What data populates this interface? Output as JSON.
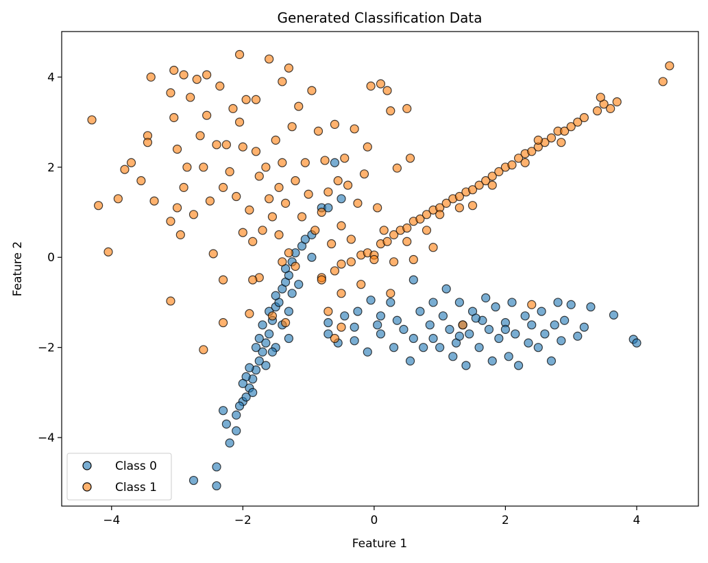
{
  "chart_data": {
    "type": "scatter",
    "title": "Generated Classification Data",
    "xlabel": "Feature 1",
    "ylabel": "Feature 2",
    "xlim": [
      -4.76,
      4.94
    ],
    "ylim": [
      -5.52,
      5.01
    ],
    "xticks": [
      -4,
      -2,
      0,
      2,
      4
    ],
    "yticks": [
      -4,
      -2,
      0,
      2,
      4
    ],
    "grid": false,
    "legend_position": "bottom-left",
    "marker_alpha": 0.6,
    "edge_color": "#000000",
    "series": [
      {
        "name": "Class 0",
        "color": "#1f77b4",
        "points": [
          [
            -2.75,
            -4.95
          ],
          [
            -2.4,
            -5.07
          ],
          [
            -2.4,
            -4.65
          ],
          [
            -2.2,
            -4.12
          ],
          [
            -2.1,
            -3.85
          ],
          [
            -2.25,
            -3.7
          ],
          [
            -2.3,
            -3.4
          ],
          [
            -2.1,
            -3.5
          ],
          [
            -2.0,
            -3.2
          ],
          [
            -2.05,
            -3.3
          ],
          [
            -1.95,
            -3.1
          ],
          [
            -1.9,
            -2.9
          ],
          [
            -1.85,
            -2.7
          ],
          [
            -1.95,
            -2.65
          ],
          [
            -1.8,
            -2.5
          ],
          [
            -1.9,
            -2.45
          ],
          [
            -1.75,
            -2.3
          ],
          [
            -1.7,
            -2.1
          ],
          [
            -1.8,
            -2.0
          ],
          [
            -1.65,
            -1.9
          ],
          [
            -1.75,
            -1.8
          ],
          [
            -1.6,
            -1.7
          ],
          [
            -1.7,
            -1.5
          ],
          [
            -1.55,
            -1.4
          ],
          [
            -1.6,
            -1.2
          ],
          [
            -1.5,
            -1.1
          ],
          [
            -1.45,
            -1.0
          ],
          [
            -1.5,
            -0.85
          ],
          [
            -1.4,
            -0.7
          ],
          [
            -1.35,
            -0.55
          ],
          [
            -1.3,
            -0.4
          ],
          [
            -1.35,
            -0.25
          ],
          [
            -1.25,
            -0.1
          ],
          [
            -1.2,
            0.1
          ],
          [
            -1.1,
            0.25
          ],
          [
            -1.05,
            0.4
          ],
          [
            -0.95,
            0.5
          ],
          [
            -1.3,
            -1.2
          ],
          [
            -1.4,
            -1.5
          ],
          [
            -1.5,
            -2.0
          ],
          [
            -1.65,
            -2.4
          ],
          [
            -1.85,
            -3.0
          ],
          [
            -2.0,
            -2.8
          ],
          [
            -1.55,
            -2.1
          ],
          [
            -1.3,
            -1.8
          ],
          [
            -1.25,
            -0.8
          ],
          [
            -1.15,
            -0.6
          ],
          [
            -0.95,
            0.0
          ],
          [
            -0.8,
            1.1
          ],
          [
            -0.6,
            2.1
          ],
          [
            -0.5,
            1.3
          ],
          [
            -0.7,
            1.1
          ],
          [
            -0.7,
            -1.45
          ],
          [
            -0.7,
            -1.7
          ],
          [
            -0.55,
            -1.9
          ],
          [
            -0.45,
            -1.3
          ],
          [
            -0.3,
            -1.55
          ],
          [
            -0.3,
            -1.85
          ],
          [
            -0.25,
            -1.2
          ],
          [
            -0.1,
            -2.1
          ],
          [
            -0.05,
            -0.95
          ],
          [
            0.05,
            -1.5
          ],
          [
            0.1,
            -1.3
          ],
          [
            0.1,
            -1.7
          ],
          [
            0.25,
            -1.0
          ],
          [
            0.3,
            -2.0
          ],
          [
            0.35,
            -1.4
          ],
          [
            0.45,
            -1.6
          ],
          [
            0.55,
            -2.3
          ],
          [
            0.6,
            -0.5
          ],
          [
            0.6,
            -1.8
          ],
          [
            0.7,
            -1.2
          ],
          [
            0.75,
            -2.0
          ],
          [
            0.85,
            -1.5
          ],
          [
            0.9,
            -1.8
          ],
          [
            1.0,
            -2.0
          ],
          [
            1.05,
            -1.3
          ],
          [
            1.1,
            -0.7
          ],
          [
            1.15,
            -1.6
          ],
          [
            1.2,
            -2.2
          ],
          [
            1.25,
            -1.9
          ],
          [
            1.3,
            -1.0
          ],
          [
            1.35,
            -1.5
          ],
          [
            1.4,
            -2.4
          ],
          [
            1.45,
            -1.7
          ],
          [
            1.5,
            -1.2
          ],
          [
            1.6,
            -2.0
          ],
          [
            1.65,
            -1.4
          ],
          [
            1.7,
            -0.9
          ],
          [
            1.75,
            -1.6
          ],
          [
            1.8,
            -2.3
          ],
          [
            1.85,
            -1.1
          ],
          [
            1.9,
            -1.8
          ],
          [
            2.0,
            -1.45
          ],
          [
            2.05,
            -2.2
          ],
          [
            2.1,
            -1.0
          ],
          [
            2.15,
            -1.7
          ],
          [
            2.2,
            -2.4
          ],
          [
            2.3,
            -1.3
          ],
          [
            2.35,
            -1.9
          ],
          [
            2.4,
            -1.5
          ],
          [
            2.5,
            -2.0
          ],
          [
            2.55,
            -1.2
          ],
          [
            2.6,
            -1.7
          ],
          [
            2.7,
            -2.3
          ],
          [
            2.75,
            -1.5
          ],
          [
            2.8,
            -1.0
          ],
          [
            2.85,
            -1.85
          ],
          [
            2.9,
            -1.4
          ],
          [
            3.0,
            -1.05
          ],
          [
            3.1,
            -1.75
          ],
          [
            3.2,
            -1.55
          ],
          [
            3.3,
            -1.1
          ],
          [
            3.65,
            -1.28
          ],
          [
            3.95,
            -1.82
          ],
          [
            4.0,
            -1.9
          ],
          [
            0.9,
            -1.0
          ],
          [
            1.55,
            -1.35
          ],
          [
            2.0,
            -1.6
          ],
          [
            1.3,
            -1.75
          ]
        ]
      },
      {
        "name": "Class 1",
        "color": "#ff7f0e",
        "points": [
          [
            -0.8,
            -0.45
          ],
          [
            -0.6,
            -0.3
          ],
          [
            -0.5,
            -0.15
          ],
          [
            -0.35,
            -0.1
          ],
          [
            -0.2,
            0.05
          ],
          [
            -0.1,
            0.1
          ],
          [
            0,
            0.05
          ],
          [
            0.1,
            0.3
          ],
          [
            0.2,
            0.35
          ],
          [
            0.3,
            0.5
          ],
          [
            0.4,
            0.6
          ],
          [
            0.5,
            0.65
          ],
          [
            0.6,
            0.8
          ],
          [
            0.7,
            0.85
          ],
          [
            0.8,
            0.95
          ],
          [
            0.9,
            1.05
          ],
          [
            1.0,
            1.1
          ],
          [
            1.1,
            1.2
          ],
          [
            1.2,
            1.3
          ],
          [
            1.3,
            1.35
          ],
          [
            1.4,
            1.45
          ],
          [
            1.5,
            1.5
          ],
          [
            1.6,
            1.6
          ],
          [
            1.7,
            1.7
          ],
          [
            1.8,
            1.8
          ],
          [
            1.9,
            1.9
          ],
          [
            2.0,
            2.0
          ],
          [
            2.1,
            2.05
          ],
          [
            2.2,
            2.2
          ],
          [
            2.3,
            2.3
          ],
          [
            2.4,
            2.35
          ],
          [
            2.5,
            2.45
          ],
          [
            2.6,
            2.55
          ],
          [
            2.7,
            2.65
          ],
          [
            2.8,
            2.8
          ],
          [
            2.9,
            2.8
          ],
          [
            3.0,
            2.9
          ],
          [
            3.1,
            3.0
          ],
          [
            3.2,
            3.1
          ],
          [
            3.4,
            3.25
          ],
          [
            3.5,
            3.4
          ],
          [
            3.6,
            3.3
          ],
          [
            3.7,
            3.45
          ],
          [
            4.4,
            3.9
          ],
          [
            4.5,
            4.25
          ],
          [
            3.45,
            3.55
          ],
          [
            2.85,
            2.55
          ],
          [
            2.3,
            2.1
          ],
          [
            1.8,
            1.6
          ],
          [
            1.3,
            1.1
          ],
          [
            0.8,
            0.6
          ],
          [
            0.5,
            0.35
          ],
          [
            0.0,
            -0.05
          ],
          [
            0.9,
            0.22
          ],
          [
            0.3,
            -0.1
          ],
          [
            -0.7,
            -1.2
          ],
          [
            -0.2,
            -0.6
          ],
          [
            1.5,
            1.15
          ],
          [
            1.0,
            0.95
          ],
          [
            2.5,
            2.6
          ],
          [
            0.6,
            -0.05
          ],
          [
            -1.55,
            -1.3
          ],
          [
            -1.35,
            -1.45
          ],
          [
            0.25,
            -0.8
          ],
          [
            -0.5,
            -0.8
          ],
          [
            1.35,
            -1.5
          ],
          [
            2.4,
            -1.05
          ],
          [
            -4.3,
            3.05
          ],
          [
            -4.2,
            1.15
          ],
          [
            -4.05,
            0.12
          ],
          [
            -3.9,
            1.3
          ],
          [
            -3.8,
            1.95
          ],
          [
            -3.7,
            2.1
          ],
          [
            -3.55,
            1.7
          ],
          [
            -3.45,
            2.7
          ],
          [
            -3.45,
            2.55
          ],
          [
            -3.4,
            4.0
          ],
          [
            -3.35,
            1.25
          ],
          [
            -3.1,
            3.65
          ],
          [
            -3.1,
            0.8
          ],
          [
            -3.1,
            -0.97
          ],
          [
            -3.05,
            4.15
          ],
          [
            -3.05,
            3.1
          ],
          [
            -3.0,
            2.4
          ],
          [
            -3.0,
            1.1
          ],
          [
            -2.95,
            0.5
          ],
          [
            -2.9,
            4.05
          ],
          [
            -2.9,
            1.55
          ],
          [
            -2.85,
            2.0
          ],
          [
            -2.8,
            3.55
          ],
          [
            -2.75,
            0.95
          ],
          [
            -2.7,
            3.95
          ],
          [
            -2.65,
            2.7
          ],
          [
            -2.6,
            2.0
          ],
          [
            -2.55,
            4.05
          ],
          [
            -2.55,
            3.15
          ],
          [
            -2.5,
            1.25
          ],
          [
            -2.45,
            0.08
          ],
          [
            -2.4,
            2.5
          ],
          [
            -2.35,
            3.8
          ],
          [
            -2.3,
            1.55
          ],
          [
            -2.3,
            -0.5
          ],
          [
            -2.3,
            -1.45
          ],
          [
            -2.25,
            2.5
          ],
          [
            -2.2,
            1.9
          ],
          [
            -2.15,
            3.3
          ],
          [
            -2.1,
            1.35
          ],
          [
            -2.05,
            4.5
          ],
          [
            -2.05,
            3.0
          ],
          [
            -2.0,
            2.45
          ],
          [
            -2.0,
            0.55
          ],
          [
            -1.95,
            3.5
          ],
          [
            -1.9,
            1.05
          ],
          [
            -1.85,
            0.35
          ],
          [
            -1.8,
            2.35
          ],
          [
            -1.8,
            3.5
          ],
          [
            -1.75,
            1.8
          ],
          [
            -1.7,
            0.6
          ],
          [
            -1.65,
            2.0
          ],
          [
            -1.6,
            1.3
          ],
          [
            -1.6,
            4.4
          ],
          [
            -1.55,
            0.9
          ],
          [
            -1.5,
            2.6
          ],
          [
            -1.45,
            1.55
          ],
          [
            -1.45,
            0.5
          ],
          [
            -1.4,
            3.9
          ],
          [
            -1.4,
            2.1
          ],
          [
            -1.35,
            1.2
          ],
          [
            -1.3,
            4.2
          ],
          [
            -1.3,
            0.1
          ],
          [
            -1.25,
            2.9
          ],
          [
            -1.2,
            1.7
          ],
          [
            -1.15,
            3.35
          ],
          [
            -1.1,
            0.9
          ],
          [
            -1.05,
            2.1
          ],
          [
            -1.0,
            1.4
          ],
          [
            -0.95,
            3.7
          ],
          [
            -0.9,
            0.6
          ],
          [
            -0.85,
            2.8
          ],
          [
            -0.8,
            1.0
          ],
          [
            -0.75,
            2.15
          ],
          [
            -0.7,
            1.45
          ],
          [
            -0.65,
            0.3
          ],
          [
            -0.6,
            2.95
          ],
          [
            -0.55,
            1.7
          ],
          [
            -0.5,
            0.7
          ],
          [
            -0.45,
            2.2
          ],
          [
            -0.4,
            1.6
          ],
          [
            -0.35,
            0.4
          ],
          [
            -0.3,
            2.85
          ],
          [
            -0.25,
            1.2
          ],
          [
            -0.15,
            1.85
          ],
          [
            -0.1,
            2.45
          ],
          [
            -0.05,
            3.8
          ],
          [
            0.05,
            1.1
          ],
          [
            0.1,
            3.85
          ],
          [
            0.15,
            0.6
          ],
          [
            0.2,
            3.7
          ],
          [
            0.25,
            3.25
          ],
          [
            0.35,
            1.98
          ],
          [
            0.5,
            3.3
          ],
          [
            0.55,
            2.2
          ],
          [
            -1.75,
            -0.45
          ],
          [
            -1.9,
            -1.25
          ],
          [
            -0.8,
            -0.5
          ],
          [
            -0.5,
            -1.55
          ],
          [
            -0.6,
            -1.8
          ],
          [
            -2.6,
            -2.05
          ],
          [
            -1.2,
            -0.2
          ],
          [
            -1.85,
            -0.5
          ],
          [
            -1.4,
            -0.1
          ]
        ]
      }
    ]
  }
}
